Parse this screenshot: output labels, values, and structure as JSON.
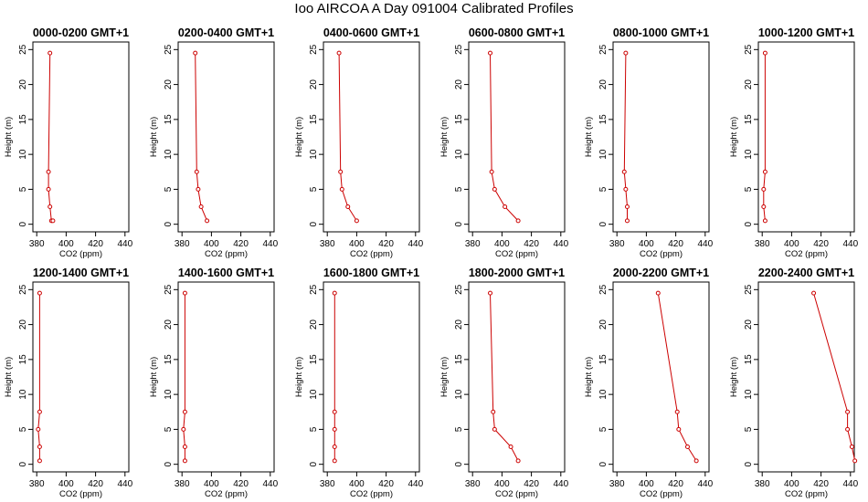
{
  "title": "Ioo AIRCOA A  Day 091004  Calibrated Profiles",
  "colors": {
    "profile": "#cc0000",
    "axis": "#000000",
    "background": "#ffffff"
  },
  "chart_data": [
    {
      "type": "line",
      "title": "0000-0200 GMT+1",
      "xlabel": "CO2 (ppm)",
      "ylabel": "Height (m)",
      "xlim": [
        380,
        440
      ],
      "ylim": [
        0,
        25
      ],
      "xticks": [
        380,
        400,
        420,
        440
      ],
      "yticks": [
        0,
        5,
        10,
        15,
        20,
        25
      ],
      "x": [
        389,
        388,
        388,
        389,
        390,
        391
      ],
      "y": [
        24.5,
        7.5,
        5,
        2.5,
        0.5,
        0.5
      ]
    },
    {
      "type": "line",
      "title": "0200-0400 GMT+1",
      "xlabel": "CO2 (ppm)",
      "ylabel": "Height (m)",
      "xlim": [
        380,
        440
      ],
      "ylim": [
        0,
        25
      ],
      "xticks": [
        380,
        400,
        420,
        440
      ],
      "yticks": [
        0,
        5,
        10,
        15,
        20,
        25
      ],
      "x": [
        389,
        390,
        391,
        393,
        397
      ],
      "y": [
        24.5,
        7.5,
        5,
        2.5,
        0.5
      ]
    },
    {
      "type": "line",
      "title": "0400-0600 GMT+1",
      "xlabel": "CO2 (ppm)",
      "ylabel": "Height (m)",
      "xlim": [
        380,
        440
      ],
      "ylim": [
        0,
        25
      ],
      "xticks": [
        380,
        400,
        420,
        440
      ],
      "yticks": [
        0,
        5,
        10,
        15,
        20,
        25
      ],
      "x": [
        388,
        389,
        390,
        394,
        400
      ],
      "y": [
        24.5,
        7.5,
        5,
        2.5,
        0.5
      ]
    },
    {
      "type": "line",
      "title": "0600-0800 GMT+1",
      "xlabel": "CO2 (ppm)",
      "ylabel": "Height (m)",
      "xlim": [
        380,
        440
      ],
      "ylim": [
        0,
        25
      ],
      "xticks": [
        380,
        400,
        420,
        440
      ],
      "yticks": [
        0,
        5,
        10,
        15,
        20,
        25
      ],
      "x": [
        392,
        393,
        395,
        402,
        411
      ],
      "y": [
        24.5,
        7.5,
        5,
        2.5,
        0.5
      ]
    },
    {
      "type": "line",
      "title": "0800-1000 GMT+1",
      "xlabel": "CO2 (ppm)",
      "ylabel": "Height (m)",
      "xlim": [
        380,
        440
      ],
      "ylim": [
        0,
        25
      ],
      "xticks": [
        380,
        400,
        420,
        440
      ],
      "yticks": [
        0,
        5,
        10,
        15,
        20,
        25
      ],
      "x": [
        386,
        385,
        386,
        387,
        387
      ],
      "y": [
        24.5,
        7.5,
        5,
        2.5,
        0.5
      ]
    },
    {
      "type": "line",
      "title": "1000-1200 GMT+1",
      "xlabel": "CO2 (ppm)",
      "ylabel": "Height (m)",
      "xlim": [
        380,
        440
      ],
      "ylim": [
        0,
        25
      ],
      "xticks": [
        380,
        400,
        420,
        440
      ],
      "yticks": [
        0,
        5,
        10,
        15,
        20,
        25
      ],
      "x": [
        382,
        382,
        381,
        381,
        382
      ],
      "y": [
        24.5,
        7.5,
        5,
        2.5,
        0.5
      ]
    },
    {
      "type": "line",
      "title": "1200-1400 GMT+1",
      "xlabel": "CO2 (ppm)",
      "ylabel": "Height (m)",
      "xlim": [
        380,
        440
      ],
      "ylim": [
        0,
        25
      ],
      "xticks": [
        380,
        400,
        420,
        440
      ],
      "yticks": [
        0,
        5,
        10,
        15,
        20,
        25
      ],
      "x": [
        382,
        382,
        381,
        382,
        382
      ],
      "y": [
        24.5,
        7.5,
        5,
        2.5,
        0.5
      ]
    },
    {
      "type": "line",
      "title": "1400-1600 GMT+1",
      "xlabel": "CO2 (ppm)",
      "ylabel": "Height (m)",
      "xlim": [
        380,
        440
      ],
      "ylim": [
        0,
        25
      ],
      "xticks": [
        380,
        400,
        420,
        440
      ],
      "yticks": [
        0,
        5,
        10,
        15,
        20,
        25
      ],
      "x": [
        382,
        382,
        381,
        382,
        382
      ],
      "y": [
        24.5,
        7.5,
        5,
        2.5,
        0.5
      ]
    },
    {
      "type": "line",
      "title": "1600-1800 GMT+1",
      "xlabel": "CO2 (ppm)",
      "ylabel": "Height (m)",
      "xlim": [
        380,
        440
      ],
      "ylim": [
        0,
        25
      ],
      "xticks": [
        380,
        400,
        420,
        440
      ],
      "yticks": [
        0,
        5,
        10,
        15,
        20,
        25
      ],
      "x": [
        385,
        385,
        385,
        385,
        385
      ],
      "y": [
        24.5,
        7.5,
        5,
        2.5,
        0.5
      ]
    },
    {
      "type": "line",
      "title": "1800-2000 GMT+1",
      "xlabel": "CO2 (ppm)",
      "ylabel": "Height (m)",
      "xlim": [
        380,
        440
      ],
      "ylim": [
        0,
        25
      ],
      "xticks": [
        380,
        400,
        420,
        440
      ],
      "yticks": [
        0,
        5,
        10,
        15,
        20,
        25
      ],
      "x": [
        392,
        394,
        395,
        406,
        411
      ],
      "y": [
        24.5,
        7.5,
        5,
        2.5,
        0.5
      ]
    },
    {
      "type": "line",
      "title": "2000-2200 GMT+1",
      "xlabel": "CO2 (ppm)",
      "ylabel": "Height (m)",
      "xlim": [
        380,
        440
      ],
      "ylim": [
        0,
        25
      ],
      "xticks": [
        380,
        400,
        420,
        440
      ],
      "yticks": [
        0,
        5,
        10,
        15,
        20,
        25
      ],
      "x": [
        408,
        421,
        422,
        428,
        434
      ],
      "y": [
        24.5,
        7.5,
        5,
        2.5,
        0.5
      ]
    },
    {
      "type": "line",
      "title": "2200-2400 GMT+1",
      "xlabel": "CO2 (ppm)",
      "ylabel": "Height (m)",
      "xlim": [
        380,
        440
      ],
      "ylim": [
        0,
        25
      ],
      "xticks": [
        380,
        400,
        420,
        440
      ],
      "yticks": [
        0,
        5,
        10,
        15,
        20,
        25
      ],
      "x": [
        415,
        438,
        438,
        441,
        443
      ],
      "y": [
        24.5,
        7.5,
        5,
        2.5,
        0.5
      ]
    }
  ]
}
